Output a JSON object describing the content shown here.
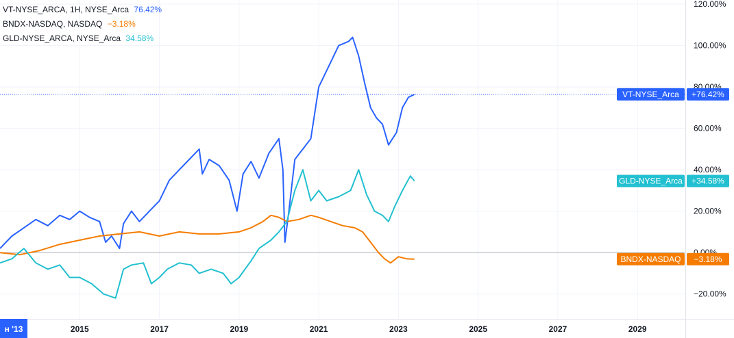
{
  "chart_data": {
    "type": "line",
    "y_unit": "%",
    "ylim": [
      -32,
      122
    ],
    "xlim": [
      2013.0,
      2030.2
    ],
    "yticks": [
      {
        "value": 120,
        "label": "120.00%"
      },
      {
        "value": 100,
        "label": "100.00%"
      },
      {
        "value": 80,
        "label": "80.00%"
      },
      {
        "value": 60,
        "label": "60.00%"
      },
      {
        "value": 40,
        "label": "40.00%"
      },
      {
        "value": 20,
        "label": "20.00%"
      },
      {
        "value": 0,
        "label": "0.00%"
      },
      {
        "value": -20,
        "label": "−20.00%"
      }
    ],
    "xticks": [
      {
        "value": 2015,
        "label": "2015"
      },
      {
        "value": 2017,
        "label": "2017"
      },
      {
        "value": 2019,
        "label": "2019"
      },
      {
        "value": 2021,
        "label": "2021"
      },
      {
        "value": 2023,
        "label": "2023"
      },
      {
        "value": 2025,
        "label": "2025"
      },
      {
        "value": 2027,
        "label": "2027"
      },
      {
        "value": 2029,
        "label": "2029"
      }
    ],
    "x_start_label": "н '13",
    "grid": true,
    "legend_position": "top-left",
    "series": [
      {
        "name": "VT-NYSE_Arca",
        "legend": "VT-NYSE_ARCA, 1H, NYSE_Arca",
        "value_label": "76.42%",
        "tag_label": "VT-NYSE_Arca",
        "tag_value": "+76.42%",
        "last_value": 76.42,
        "color": "#2962ff",
        "x": [
          2013.0,
          2013.3,
          2013.6,
          2013.9,
          2014.2,
          2014.5,
          2014.75,
          2015.0,
          2015.25,
          2015.5,
          2015.65,
          2015.8,
          2016.0,
          2016.1,
          2016.3,
          2016.5,
          2016.75,
          2017.0,
          2017.25,
          2017.5,
          2017.75,
          2018.0,
          2018.08,
          2018.25,
          2018.5,
          2018.75,
          2018.95,
          2019.1,
          2019.3,
          2019.5,
          2019.75,
          2020.0,
          2020.1,
          2020.15,
          2020.25,
          2020.4,
          2020.6,
          2020.8,
          2021.0,
          2021.25,
          2021.5,
          2021.75,
          2021.85,
          2022.0,
          2022.15,
          2022.3,
          2022.45,
          2022.6,
          2022.75,
          2022.95,
          2023.1,
          2023.25,
          2023.4
        ],
        "y": [
          2,
          8,
          12,
          16,
          13,
          18,
          16,
          20,
          17,
          15,
          5,
          8,
          2,
          14,
          20,
          15,
          20,
          25,
          35,
          40,
          45,
          50,
          38,
          45,
          42,
          35,
          20,
          38,
          44,
          36,
          48,
          55,
          40,
          5,
          20,
          45,
          50,
          55,
          80,
          90,
          100,
          102,
          104,
          95,
          82,
          70,
          65,
          62,
          52,
          58,
          70,
          75,
          76.4
        ]
      },
      {
        "name": "BNDX-NASDAQ",
        "legend": "BNDX-NASDAQ, NASDAQ",
        "value_label": "−3.18%",
        "tag_label": "BNDX-NASDAQ",
        "tag_value": "−3.18%",
        "last_value": -3.18,
        "color": "#f57c00",
        "x": [
          2013.0,
          2013.5,
          2014.0,
          2014.5,
          2015.0,
          2015.5,
          2016.0,
          2016.5,
          2017.0,
          2017.5,
          2018.0,
          2018.5,
          2019.0,
          2019.3,
          2019.6,
          2019.8,
          2020.0,
          2020.2,
          2020.5,
          2020.8,
          2021.0,
          2021.3,
          2021.6,
          2021.9,
          2022.1,
          2022.3,
          2022.5,
          2022.65,
          2022.8,
          2023.0,
          2023.2,
          2023.4
        ],
        "y": [
          0,
          -1,
          1,
          4,
          6,
          8,
          9,
          10,
          8,
          10,
          9,
          9,
          10,
          12,
          15,
          18,
          17,
          15,
          16,
          18,
          17,
          15,
          13,
          12,
          10,
          5,
          0,
          -3,
          -5,
          -2,
          -3,
          -3.18
        ]
      },
      {
        "name": "GLD-NYSE_Arca",
        "legend": "GLD-NYSE_ARCA, NYSE_Arca",
        "value_label": "34.58%",
        "tag_label": "GLD-NYSE_Arca",
        "tag_value": "+34.58%",
        "last_value": 34.58,
        "color": "#22c0d0",
        "x": [
          2013.0,
          2013.3,
          2013.6,
          2013.9,
          2014.2,
          2014.5,
          2014.75,
          2015.0,
          2015.3,
          2015.6,
          2015.9,
          2016.1,
          2016.3,
          2016.6,
          2016.8,
          2017.0,
          2017.2,
          2017.5,
          2017.8,
          2018.0,
          2018.3,
          2018.6,
          2018.8,
          2019.0,
          2019.3,
          2019.5,
          2019.8,
          2020.0,
          2020.2,
          2020.4,
          2020.6,
          2020.8,
          2021.0,
          2021.2,
          2021.5,
          2021.8,
          2022.0,
          2022.2,
          2022.4,
          2022.6,
          2022.75,
          2022.9,
          2023.1,
          2023.3,
          2023.4
        ],
        "y": [
          -5,
          -3,
          2,
          -5,
          -8,
          -6,
          -12,
          -12,
          -15,
          -20,
          -22,
          -8,
          -6,
          -5,
          -15,
          -12,
          -8,
          -5,
          -6,
          -10,
          -8,
          -10,
          -15,
          -12,
          -4,
          2,
          6,
          10,
          15,
          30,
          40,
          25,
          30,
          25,
          27,
          30,
          40,
          28,
          20,
          18,
          15,
          22,
          30,
          37,
          34.6
        ]
      }
    ]
  }
}
